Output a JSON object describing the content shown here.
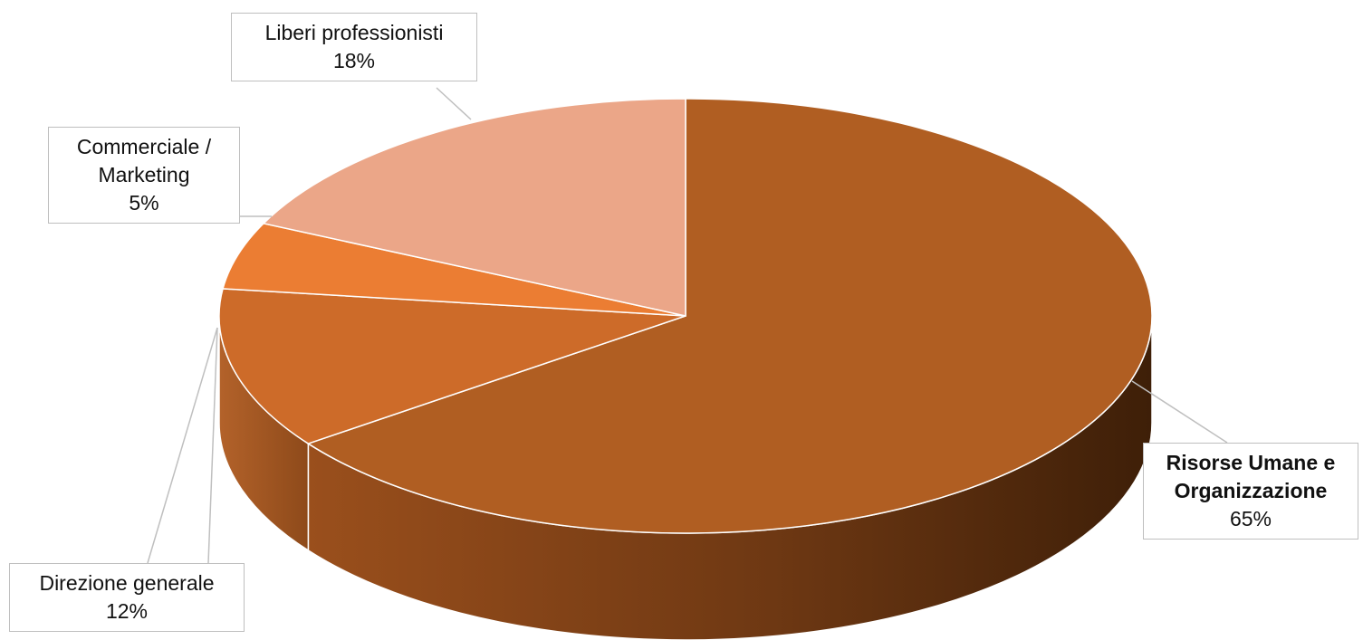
{
  "chart_data": {
    "type": "pie",
    "style": "3d",
    "slices": [
      {
        "label": "Risorse Umane e Organizzazione",
        "value": 65,
        "value_label": "65%",
        "color": "#B05E22",
        "bold": true
      },
      {
        "label": "Direzione generale",
        "value": 12,
        "value_label": "12%",
        "color": "#CD6B29",
        "bold": false
      },
      {
        "label": "Commerciale / Marketing",
        "value": 5,
        "value_label": "5%",
        "color": "#EB7D33",
        "bold": false
      },
      {
        "label": "Liberi professionisti",
        "value": 18,
        "value_label": "18%",
        "color": "#EBA688",
        "bold": false
      }
    ],
    "legend": "none",
    "data_labels": "callouts"
  }
}
